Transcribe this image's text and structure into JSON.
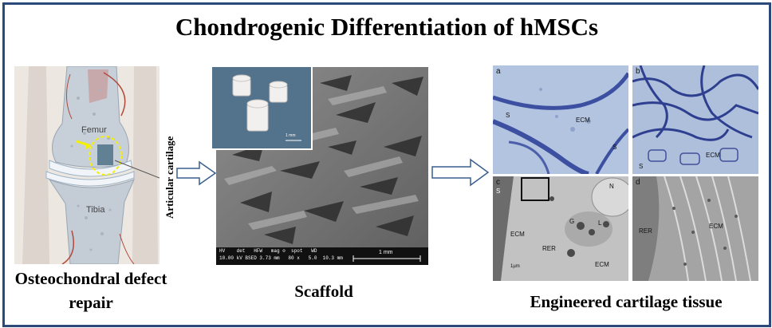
{
  "title": "Chondrogenic Differentiation of hMSCs",
  "knee": {
    "caption_line1": "Osteochondral defect",
    "caption_line2": "repair",
    "label_femur": "Femur",
    "label_tibia": "Tibia",
    "label_cartilage": "Articular cartilage"
  },
  "scaffold": {
    "caption": "Scaffold",
    "inset_scale": "1 mm",
    "sem_info_line1": "HV    det   HFW   mag ⊙  spot   WD",
    "sem_info_line2": "10.00 kV BSED 3.73 mm   80 x   5.0  10.3 mm",
    "sem_scale": "1 mm"
  },
  "tissue": {
    "caption": "Engineered cartilage tissue",
    "panel_a": {
      "letter": "a",
      "labels": [
        "ECM",
        "S",
        "S"
      ]
    },
    "panel_b": {
      "letter": "b",
      "labels": [
        "ECM",
        "S"
      ]
    },
    "panel_c": {
      "letter": "c",
      "labels": [
        "S",
        "N",
        "G",
        "L",
        "ECM",
        "RER",
        "ECM",
        "1µm"
      ]
    },
    "panel_d": {
      "letter": "d",
      "labels": [
        "RER",
        "ECM"
      ]
    }
  },
  "colors": {
    "border": "#2b4a7a",
    "arrow_stroke": "#3a5f8f",
    "stain_blue": "#3d4fa0",
    "cartilage_highlight": "#f4f000"
  }
}
